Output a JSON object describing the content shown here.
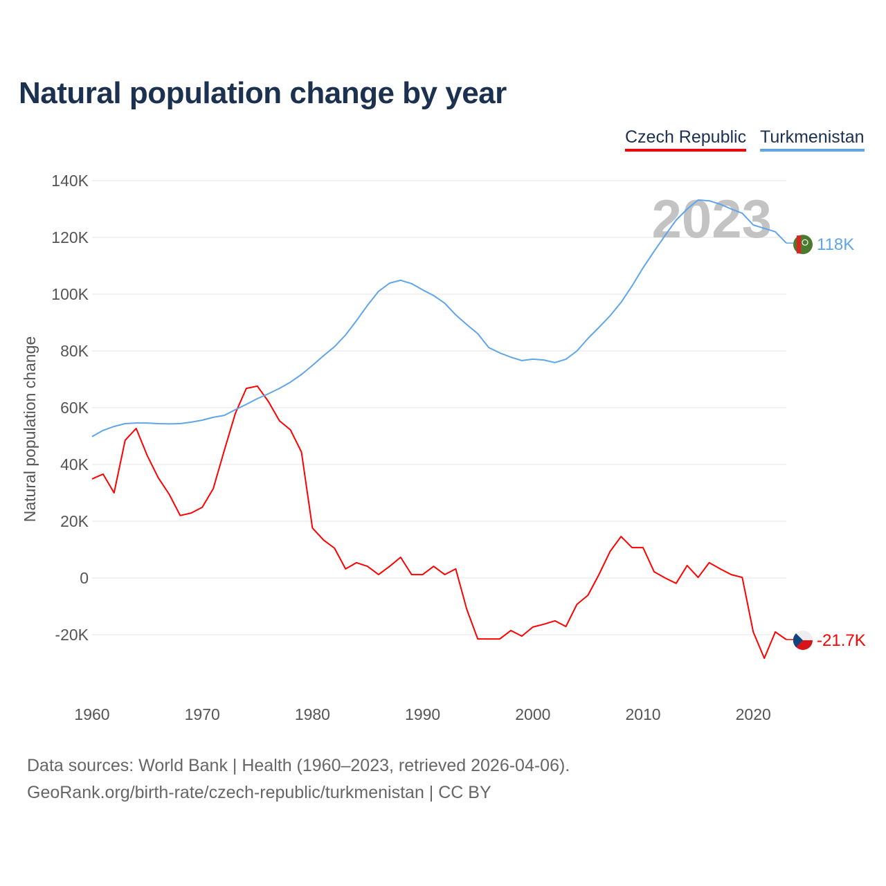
{
  "title": "Natural population change by year",
  "footer": {
    "line1": "Data sources: World Bank | Health (1960–2023, retrieved 2026-04-06).",
    "line2": "GeoRank.org/birth-rate/czech-republic/turkmenistan | CC BY"
  },
  "chart_data": {
    "type": "line",
    "title": "Natural population change by year",
    "xlabel": "",
    "ylabel": "Natural population change",
    "watermark_year": "2023",
    "xlim": [
      1960,
      2023
    ],
    "ylim": [
      -40000,
      140000
    ],
    "x_ticks": [
      1960,
      1970,
      1980,
      1990,
      2000,
      2010,
      2020
    ],
    "y_ticks": [
      -20000,
      0,
      20000,
      40000,
      60000,
      80000,
      100000,
      120000,
      140000
    ],
    "y_tick_labels": [
      "-20K",
      "0",
      "20K",
      "40K",
      "60K",
      "80K",
      "100K",
      "120K",
      "140K"
    ],
    "grid": true,
    "legend_position": "top-right",
    "x": [
      1960,
      1961,
      1962,
      1963,
      1964,
      1965,
      1966,
      1967,
      1968,
      1969,
      1970,
      1971,
      1972,
      1973,
      1974,
      1975,
      1976,
      1977,
      1978,
      1979,
      1980,
      1981,
      1982,
      1983,
      1984,
      1985,
      1986,
      1987,
      1988,
      1989,
      1990,
      1991,
      1992,
      1993,
      1994,
      1995,
      1996,
      1997,
      1998,
      1999,
      2000,
      2001,
      2002,
      2003,
      2004,
      2005,
      2006,
      2007,
      2008,
      2009,
      2010,
      2011,
      2012,
      2013,
      2014,
      2015,
      2016,
      2017,
      2018,
      2019,
      2020,
      2021,
      2022,
      2023
    ],
    "series": [
      {
        "name": "Czech Republic",
        "color": "#ff0000",
        "end_label": "-21.7K",
        "flag": "czech-flag",
        "values": [
          34900,
          36600,
          30000,
          48500,
          52700,
          43200,
          35400,
          29500,
          22000,
          22900,
          24900,
          31500,
          44900,
          58000,
          66800,
          67600,
          62200,
          55400,
          52200,
          44400,
          17600,
          13400,
          10500,
          3200,
          5400,
          4100,
          1200,
          4100,
          7300,
          1200,
          1200,
          4100,
          1200,
          3200,
          -11000,
          -21500,
          -21500,
          -21500,
          -18500,
          -20500,
          -17300,
          -16300,
          -15100,
          -17100,
          -9300,
          -6100,
          1200,
          9300,
          14600,
          10700,
          10700,
          2200,
          0,
          -1900,
          4400,
          200,
          5400,
          3200,
          1200,
          200,
          -19000,
          -28300,
          -19000,
          -21700
        ]
      },
      {
        "name": "Turkmenistan",
        "color": "#5ea5ea",
        "end_label": "118K",
        "flag": "turkmenistan-flag",
        "values": [
          49800,
          52000,
          53400,
          54400,
          54600,
          54600,
          54400,
          54300,
          54400,
          54900,
          55600,
          56600,
          57300,
          59300,
          61200,
          63200,
          64900,
          66800,
          69000,
          71700,
          74900,
          78300,
          81500,
          85600,
          90700,
          96100,
          101000,
          103900,
          104900,
          103700,
          101500,
          99500,
          96800,
          92700,
          89300,
          86100,
          81200,
          79300,
          77800,
          76600,
          77100,
          76800,
          75900,
          77100,
          80000,
          84400,
          88300,
          92400,
          97100,
          102900,
          109300,
          115100,
          120700,
          126100,
          130000,
          133200,
          132900,
          131700,
          130000,
          128500,
          124400,
          123200,
          122000,
          118000
        ]
      }
    ]
  }
}
